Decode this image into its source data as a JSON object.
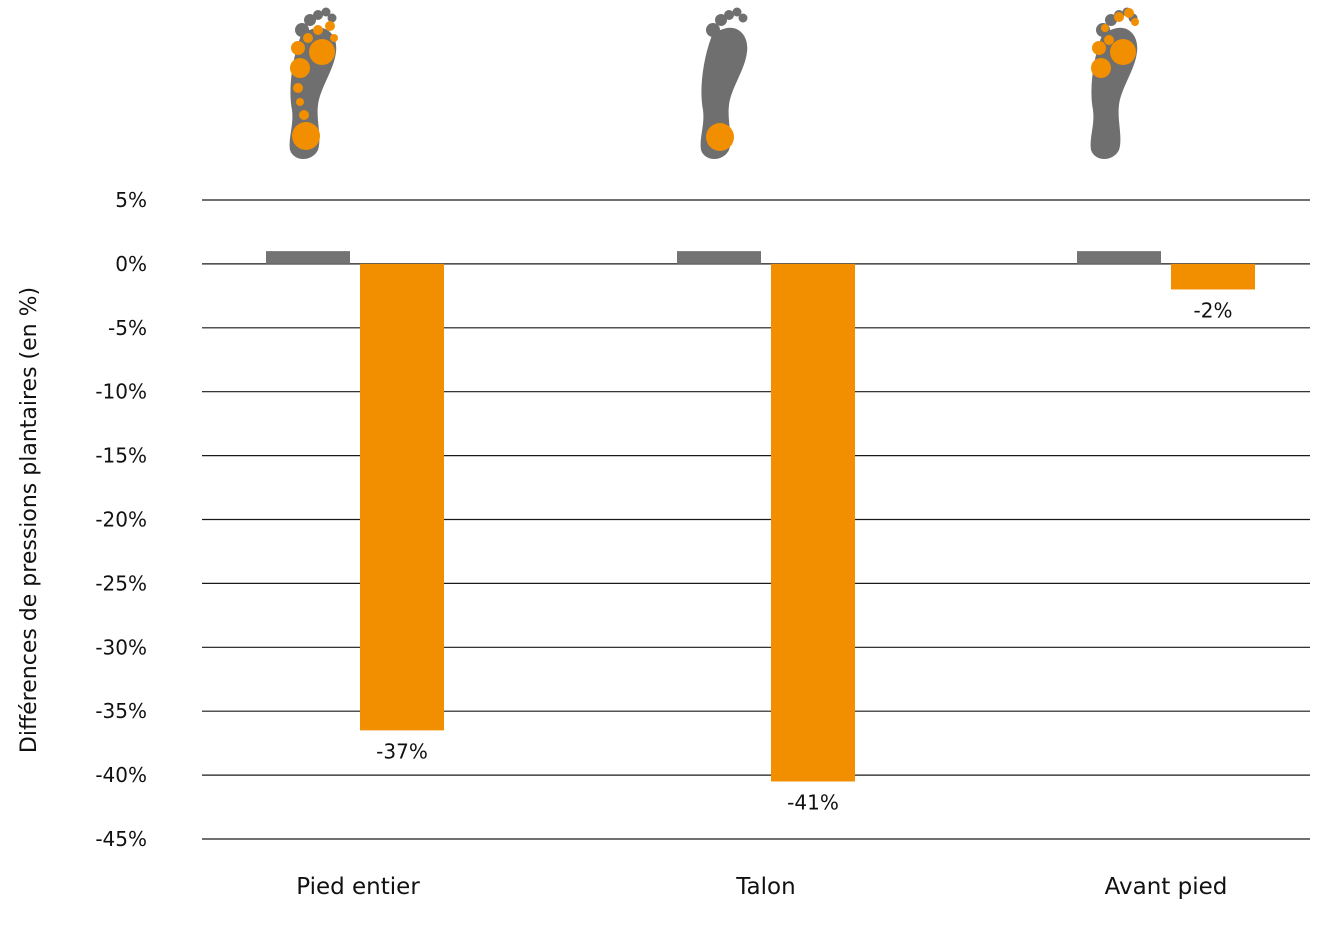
{
  "chart_data": {
    "type": "bar",
    "title": "",
    "ylabel": "Différences de pressions plantaires (en %)",
    "xlabel": "",
    "ylim": [
      -45,
      5
    ],
    "y_ticks": [
      5,
      0,
      -5,
      -10,
      -15,
      -20,
      -25,
      -30,
      -35,
      -40,
      -45
    ],
    "y_tick_labels": [
      "5%",
      "0%",
      "-5%",
      "-10%",
      "-15%",
      "-20%",
      "-25%",
      "-30%",
      "-35%",
      "-40%",
      "-45%"
    ],
    "grid": true,
    "legend": "none",
    "categories": [
      "Pied entier",
      "Talon",
      "Avant pied"
    ],
    "series": [
      {
        "color": "#737373",
        "values": [
          1,
          1,
          1
        ],
        "labels": [
          "",
          "",
          ""
        ]
      },
      {
        "color": "#f18f00",
        "values": [
          -36.5,
          -40.5,
          -2
        ],
        "labels": [
          "-37%",
          "-41%",
          "-2%"
        ]
      }
    ]
  },
  "colors": {
    "foot_gray": "#6f6f6f",
    "highlight_orange": "#f18f00",
    "grid": "#1a1a1a"
  },
  "icons": [
    "footprint-full-foot-icon",
    "footprint-heel-icon",
    "footprint-forefoot-icon"
  ]
}
